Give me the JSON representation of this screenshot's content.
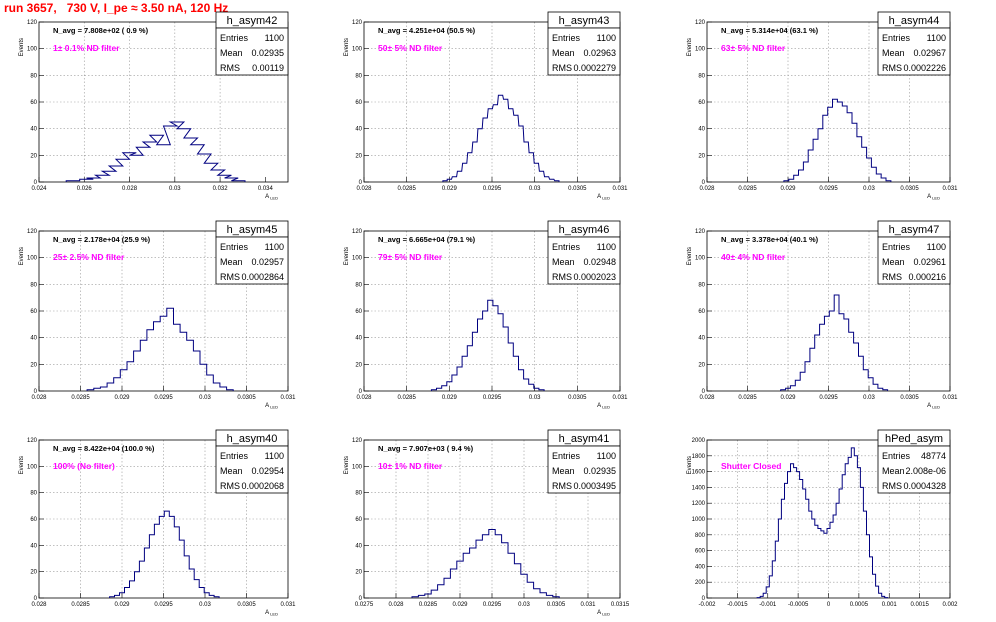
{
  "page": {
    "run_title": "run 3657,   730 V, I_pe ≈ 3.50 nA, 120 Hz"
  },
  "colors": {
    "histogram_line": "#000080",
    "annotation": "#ff00ff",
    "title": "#ff0000",
    "grid": "#9a9a9a"
  },
  "chart_data": [
    {
      "type": "histogram",
      "name": "h_asym42",
      "nav_label": "N_avg = 7.808e+02 ( 0.9 %)",
      "filter_label": "1± 0.1% ND filter",
      "stats": {
        "entries": "1100",
        "mean": "0.02935",
        "rms": "0.00119"
      },
      "xlim": [
        0.024,
        0.035
      ],
      "ylim": [
        0,
        120
      ],
      "xticks": [
        "0.024",
        "0.026",
        "0.028",
        "0.03",
        "0.032",
        "0.034"
      ],
      "yticks": [
        "0",
        "20",
        "40",
        "60",
        "80",
        "100",
        "120"
      ],
      "xlabel": "A_LED",
      "ylabel": "Events",
      "grid": true,
      "bins": [
        [
          0.0255,
          1
        ],
        [
          0.0261,
          2
        ],
        [
          0.0264,
          3
        ],
        [
          0.0268,
          5
        ],
        [
          0.0271,
          8
        ],
        [
          0.0274,
          12
        ],
        [
          0.0277,
          17
        ],
        [
          0.028,
          22
        ],
        [
          0.0283,
          20
        ],
        [
          0.0286,
          26
        ],
        [
          0.0289,
          30
        ],
        [
          0.0292,
          35
        ],
        [
          0.0295,
          28
        ],
        [
          0.0298,
          42
        ],
        [
          0.0301,
          45
        ],
        [
          0.0304,
          40
        ],
        [
          0.0307,
          33
        ],
        [
          0.031,
          28
        ],
        [
          0.0313,
          21
        ],
        [
          0.0316,
          14
        ],
        [
          0.0319,
          9
        ],
        [
          0.0322,
          5
        ],
        [
          0.0325,
          3
        ],
        [
          0.0328,
          1
        ]
      ]
    },
    {
      "type": "histogram",
      "name": "h_asym43",
      "nav_label": "N_avg = 4.251e+04 (50.5 %)",
      "filter_label": "50± 5% ND filter",
      "stats": {
        "entries": "1100",
        "mean": "0.02963",
        "rms": "0.0002279"
      },
      "xlim": [
        0.028,
        0.031
      ],
      "ylim": [
        0,
        120
      ],
      "xticks": [
        "0.028",
        "0.0285",
        "0.029",
        "0.0295",
        "0.03",
        "0.0305",
        "0.031"
      ],
      "yticks": [
        "0",
        "20",
        "40",
        "60",
        "80",
        "100",
        "120"
      ],
      "xlabel": "A_LED",
      "ylabel": "Events",
      "grid": true,
      "bins": [
        [
          0.02895,
          1
        ],
        [
          0.029,
          2
        ],
        [
          0.02906,
          4
        ],
        [
          0.02912,
          8
        ],
        [
          0.02918,
          14
        ],
        [
          0.02924,
          22
        ],
        [
          0.0293,
          30
        ],
        [
          0.02936,
          40
        ],
        [
          0.02942,
          48
        ],
        [
          0.02948,
          55
        ],
        [
          0.02954,
          58
        ],
        [
          0.0296,
          65
        ],
        [
          0.02966,
          62
        ],
        [
          0.02972,
          55
        ],
        [
          0.02978,
          50
        ],
        [
          0.02984,
          42
        ],
        [
          0.0299,
          30
        ],
        [
          0.02996,
          22
        ],
        [
          0.03002,
          14
        ],
        [
          0.03008,
          8
        ],
        [
          0.03014,
          4
        ],
        [
          0.0302,
          2
        ],
        [
          0.03026,
          1
        ]
      ]
    },
    {
      "type": "histogram",
      "name": "h_asym44",
      "nav_label": "N_avg = 5.314e+04 (63.1 %)",
      "filter_label": "63± 5% ND filter",
      "stats": {
        "entries": "1100",
        "mean": "0.02967",
        "rms": "0.0002226"
      },
      "xlim": [
        0.028,
        0.031
      ],
      "ylim": [
        0,
        120
      ],
      "xticks": [
        "0.028",
        "0.0285",
        "0.029",
        "0.0295",
        "0.03",
        "0.0305",
        "0.031"
      ],
      "yticks": [
        "0",
        "20",
        "40",
        "60",
        "80",
        "100",
        "120"
      ],
      "xlabel": "A_LED",
      "ylabel": "Events",
      "grid": true,
      "bins": [
        [
          0.02898,
          1
        ],
        [
          0.02904,
          2
        ],
        [
          0.0291,
          5
        ],
        [
          0.02916,
          9
        ],
        [
          0.02922,
          15
        ],
        [
          0.02928,
          24
        ],
        [
          0.02934,
          32
        ],
        [
          0.0294,
          40
        ],
        [
          0.02946,
          50
        ],
        [
          0.02952,
          56
        ],
        [
          0.02958,
          62
        ],
        [
          0.02964,
          60
        ],
        [
          0.0297,
          57
        ],
        [
          0.02976,
          52
        ],
        [
          0.02982,
          44
        ],
        [
          0.02988,
          34
        ],
        [
          0.02994,
          26
        ],
        [
          0.03,
          18
        ],
        [
          0.03006,
          11
        ],
        [
          0.03012,
          6
        ],
        [
          0.03018,
          3
        ],
        [
          0.03024,
          1
        ]
      ]
    },
    {
      "type": "histogram",
      "name": "h_asym45",
      "nav_label": "N_avg = 2.178e+04 (25.9 %)",
      "filter_label": "25± 2.5% ND filter",
      "stats": {
        "entries": "1100",
        "mean": "0.02957",
        "rms": "0.0002864"
      },
      "xlim": [
        0.028,
        0.031
      ],
      "ylim": [
        0,
        120
      ],
      "xticks": [
        "0.028",
        "0.0285",
        "0.029",
        "0.0295",
        "0.03",
        "0.0305",
        "0.031"
      ],
      "yticks": [
        "0",
        "20",
        "40",
        "60",
        "80",
        "100",
        "120"
      ],
      "xlabel": "A_LED",
      "ylabel": "Events",
      "grid": true,
      "bins": [
        [
          0.02862,
          1
        ],
        [
          0.0287,
          2
        ],
        [
          0.02878,
          3
        ],
        [
          0.02886,
          6
        ],
        [
          0.02894,
          10
        ],
        [
          0.02902,
          16
        ],
        [
          0.0291,
          22
        ],
        [
          0.02918,
          30
        ],
        [
          0.02926,
          38
        ],
        [
          0.02934,
          46
        ],
        [
          0.02942,
          52
        ],
        [
          0.0295,
          56
        ],
        [
          0.02958,
          62
        ],
        [
          0.02966,
          50
        ],
        [
          0.02974,
          44
        ],
        [
          0.02982,
          38
        ],
        [
          0.0299,
          30
        ],
        [
          0.02998,
          20
        ],
        [
          0.03006,
          12
        ],
        [
          0.03014,
          6
        ],
        [
          0.03022,
          3
        ],
        [
          0.0303,
          1
        ]
      ]
    },
    {
      "type": "histogram",
      "name": "h_asym46",
      "nav_label": "N_avg = 6.665e+04 (79.1 %)",
      "filter_label": "79± 5% ND filter",
      "stats": {
        "entries": "1100",
        "mean": "0.02948",
        "rms": "0.0002023"
      },
      "xlim": [
        0.028,
        0.031
      ],
      "ylim": [
        0,
        120
      ],
      "xticks": [
        "0.028",
        "0.0285",
        "0.029",
        "0.0295",
        "0.03",
        "0.0305",
        "0.031"
      ],
      "yticks": [
        "0",
        "20",
        "40",
        "60",
        "80",
        "100",
        "120"
      ],
      "xlabel": "A_LED",
      "ylabel": "Events",
      "grid": true,
      "bins": [
        [
          0.02882,
          1
        ],
        [
          0.02888,
          2
        ],
        [
          0.02894,
          4
        ],
        [
          0.029,
          7
        ],
        [
          0.02906,
          12
        ],
        [
          0.02912,
          18
        ],
        [
          0.02918,
          26
        ],
        [
          0.02924,
          34
        ],
        [
          0.0293,
          44
        ],
        [
          0.02936,
          54
        ],
        [
          0.02942,
          60
        ],
        [
          0.02948,
          68
        ],
        [
          0.02954,
          64
        ],
        [
          0.0296,
          58
        ],
        [
          0.02966,
          48
        ],
        [
          0.02972,
          36
        ],
        [
          0.02978,
          26
        ],
        [
          0.02984,
          16
        ],
        [
          0.0299,
          9
        ],
        [
          0.02996,
          5
        ],
        [
          0.03002,
          2
        ],
        [
          0.03008,
          1
        ]
      ]
    },
    {
      "type": "histogram",
      "name": "h_asym47",
      "nav_label": "N_avg = 3.378e+04 (40.1 %)",
      "filter_label": "40± 4% ND filter",
      "stats": {
        "entries": "1100",
        "mean": "0.02961",
        "rms": "0.000216"
      },
      "xlim": [
        0.028,
        0.031
      ],
      "ylim": [
        0,
        120
      ],
      "xticks": [
        "0.028",
        "0.0285",
        "0.029",
        "0.0295",
        "0.03",
        "0.0305",
        "0.031"
      ],
      "yticks": [
        "0",
        "20",
        "40",
        "60",
        "80",
        "100",
        "120"
      ],
      "xlabel": "A_LED",
      "ylabel": "Events",
      "grid": true,
      "bins": [
        [
          0.02894,
          1
        ],
        [
          0.029,
          2
        ],
        [
          0.02906,
          4
        ],
        [
          0.02912,
          8
        ],
        [
          0.02918,
          14
        ],
        [
          0.02924,
          22
        ],
        [
          0.0293,
          32
        ],
        [
          0.02936,
          42
        ],
        [
          0.02942,
          50
        ],
        [
          0.02948,
          56
        ],
        [
          0.02954,
          60
        ],
        [
          0.0296,
          72
        ],
        [
          0.02966,
          58
        ],
        [
          0.02972,
          54
        ],
        [
          0.02978,
          44
        ],
        [
          0.02984,
          36
        ],
        [
          0.0299,
          26
        ],
        [
          0.02996,
          16
        ],
        [
          0.03002,
          10
        ],
        [
          0.03008,
          5
        ],
        [
          0.03014,
          2
        ],
        [
          0.0302,
          1
        ]
      ]
    },
    {
      "type": "histogram",
      "name": "h_asym40",
      "nav_label": "N_avg = 8.422e+04 (100.0 %)",
      "filter_label": "100% (No filter)",
      "stats": {
        "entries": "1100",
        "mean": "0.02954",
        "rms": "0.0002068"
      },
      "xlim": [
        0.028,
        0.031
      ],
      "ylim": [
        0,
        120
      ],
      "xticks": [
        "0.028",
        "0.0285",
        "0.029",
        "0.0295",
        "0.03",
        "0.0305",
        "0.031"
      ],
      "yticks": [
        "0",
        "20",
        "40",
        "60",
        "80",
        "100",
        "120"
      ],
      "xlabel": "A_LED",
      "ylabel": "Events",
      "grid": true,
      "bins": [
        [
          0.02888,
          1
        ],
        [
          0.02894,
          2
        ],
        [
          0.029,
          4
        ],
        [
          0.02906,
          8
        ],
        [
          0.02912,
          13
        ],
        [
          0.02918,
          20
        ],
        [
          0.02924,
          28
        ],
        [
          0.0293,
          38
        ],
        [
          0.02936,
          48
        ],
        [
          0.02942,
          56
        ],
        [
          0.02948,
          62
        ],
        [
          0.02954,
          66
        ],
        [
          0.0296,
          62
        ],
        [
          0.02966,
          54
        ],
        [
          0.02972,
          44
        ],
        [
          0.02978,
          32
        ],
        [
          0.02984,
          22
        ],
        [
          0.0299,
          14
        ],
        [
          0.02996,
          8
        ],
        [
          0.03002,
          4
        ],
        [
          0.03008,
          2
        ],
        [
          0.03014,
          1
        ]
      ]
    },
    {
      "type": "histogram",
      "name": "h_asym41",
      "nav_label": "N_avg = 7.907e+03 ( 9.4 %)",
      "filter_label": "10± 1% ND filter",
      "stats": {
        "entries": "1100",
        "mean": "0.02935",
        "rms": "0.0003495"
      },
      "xlim": [
        0.0275,
        0.0315
      ],
      "ylim": [
        0,
        120
      ],
      "xticks": [
        "0.0275",
        "0.028",
        "0.0285",
        "0.029",
        "0.0295",
        "0.03",
        "0.0305",
        "0.031",
        "0.0315"
      ],
      "yticks": [
        "0",
        "20",
        "40",
        "60",
        "80",
        "100",
        "120"
      ],
      "xlabel": "A_LED",
      "ylabel": "Events",
      "grid": true,
      "bins": [
        [
          0.0283,
          1
        ],
        [
          0.0284,
          2
        ],
        [
          0.0285,
          3
        ],
        [
          0.0286,
          6
        ],
        [
          0.0287,
          10
        ],
        [
          0.0288,
          15
        ],
        [
          0.0289,
          22
        ],
        [
          0.029,
          28
        ],
        [
          0.0291,
          34
        ],
        [
          0.0292,
          38
        ],
        [
          0.0293,
          44
        ],
        [
          0.0294,
          48
        ],
        [
          0.0295,
          52
        ],
        [
          0.0296,
          48
        ],
        [
          0.0297,
          42
        ],
        [
          0.0298,
          34
        ],
        [
          0.0299,
          26
        ],
        [
          0.03,
          18
        ],
        [
          0.0301,
          12
        ],
        [
          0.0302,
          7
        ],
        [
          0.0303,
          4
        ],
        [
          0.0304,
          2
        ],
        [
          0.0305,
          1
        ]
      ]
    },
    {
      "type": "histogram",
      "name": "hPed_asym",
      "nav_label": "",
      "filter_label": "Shutter Closed",
      "stats": {
        "entries": "48774",
        "mean": "2.008e-06",
        "rms": "0.0004328"
      },
      "xlim": [
        -0.002,
        0.002
      ],
      "ylim": [
        0,
        2000
      ],
      "xticks": [
        "-0.002",
        "-0.0015",
        "-0.001",
        "-0.0005",
        "0",
        "0.0005",
        "0.001",
        "0.0015",
        "0.002"
      ],
      "yticks": [
        "0",
        "200",
        "400",
        "600",
        "800",
        "1000",
        "1200",
        "1400",
        "1600",
        "1800",
        "2000"
      ],
      "xlabel": "",
      "ylabel": "Events",
      "grid": true,
      "bins": [
        [
          -0.00115,
          5
        ],
        [
          -0.0011,
          20
        ],
        [
          -0.00105,
          60
        ],
        [
          -0.001,
          140
        ],
        [
          -0.00095,
          280
        ],
        [
          -0.0009,
          470
        ],
        [
          -0.00085,
          720
        ],
        [
          -0.0008,
          1000
        ],
        [
          -0.00075,
          1250
        ],
        [
          -0.0007,
          1450
        ],
        [
          -0.00065,
          1600
        ],
        [
          -0.0006,
          1700
        ],
        [
          -0.00055,
          1650
        ],
        [
          -0.0005,
          1600
        ],
        [
          -0.00045,
          1500
        ],
        [
          -0.0004,
          1380
        ],
        [
          -0.00035,
          1250
        ],
        [
          -0.0003,
          1100
        ],
        [
          -0.00025,
          1000
        ],
        [
          -0.0002,
          920
        ],
        [
          -0.00015,
          880
        ],
        [
          -0.0001,
          850
        ],
        [
          -5e-05,
          820
        ],
        [
          0,
          880
        ],
        [
          5e-05,
          960
        ],
        [
          0.0001,
          1050
        ],
        [
          0.00015,
          1200
        ],
        [
          0.0002,
          1380
        ],
        [
          0.00025,
          1560
        ],
        [
          0.0003,
          1700
        ],
        [
          0.00035,
          1780
        ],
        [
          0.0004,
          1900
        ],
        [
          0.00045,
          1800
        ],
        [
          0.0005,
          1650
        ],
        [
          0.00055,
          1400
        ],
        [
          0.0006,
          1100
        ],
        [
          0.00065,
          800
        ],
        [
          0.0007,
          520
        ],
        [
          0.00075,
          300
        ],
        [
          0.0008,
          150
        ],
        [
          0.00085,
          60
        ],
        [
          0.0009,
          20
        ],
        [
          0.00095,
          5
        ]
      ]
    }
  ]
}
